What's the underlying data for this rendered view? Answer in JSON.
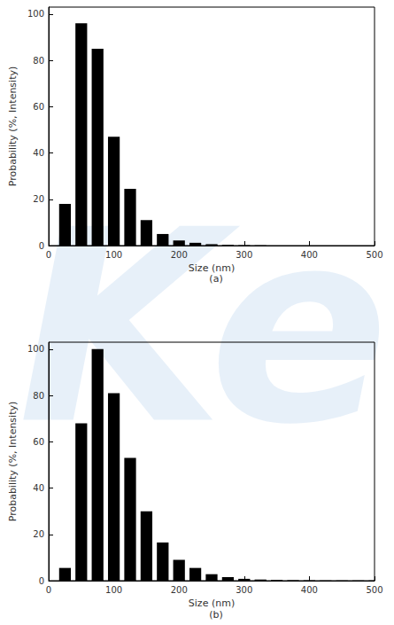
{
  "chart_data": [
    {
      "type": "bar",
      "title": "(a)",
      "x_label": "Size (nm)",
      "y_label": "Probability (%, Intensity)",
      "bins": [
        12.5,
        37.5,
        62.5,
        87.5,
        112.5,
        137.5,
        162.5,
        187.5,
        212.5,
        237.5,
        262.5,
        287.5,
        312.5,
        337.5
      ],
      "values": [
        18,
        96,
        85,
        47,
        24.5,
        11,
        5,
        2.2,
        1.2,
        0.6,
        0.3,
        0.15,
        0.1
      ],
      "color": "#000000",
      "xlim": [
        0,
        500
      ],
      "xticks": [
        0,
        100,
        200,
        300,
        400,
        500
      ],
      "ylim": [
        0,
        103
      ],
      "yticks": [
        0,
        20,
        40,
        60,
        80,
        100
      ],
      "grid": false
    },
    {
      "type": "bar",
      "title": "(b)",
      "x_label": "Size (nm)",
      "y_label": "Probability (%, Intensity)",
      "bins": [
        12.5,
        37.5,
        62.5,
        87.5,
        112.5,
        137.5,
        162.5,
        187.5,
        212.5,
        237.5,
        262.5,
        287.5,
        312.5,
        337.5,
        362.5,
        387.5,
        412.5,
        437.5,
        462.5,
        487.5,
        512.5
      ],
      "values": [
        5.5,
        68,
        100,
        81,
        53,
        30,
        16.5,
        9,
        5.5,
        2.8,
        1.5,
        0.8,
        0.5,
        0.3,
        0.2,
        0.15,
        0.1,
        0.1,
        0.1,
        0.1
      ],
      "color": "#000000",
      "xlim": [
        0,
        500
      ],
      "xticks": [
        0,
        100,
        200,
        300,
        400,
        500
      ],
      "ylim": [
        0,
        103
      ],
      "yticks": [
        0,
        20,
        40,
        60,
        80,
        100
      ],
      "grid": false
    }
  ],
  "annotation": "Keit"
}
